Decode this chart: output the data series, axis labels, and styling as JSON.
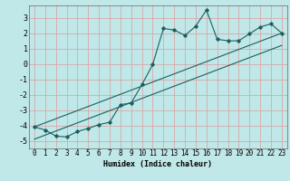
{
  "title": "",
  "xlabel": "Humidex (Indice chaleur)",
  "background_color": "#c0e8e8",
  "grid_color": "#d8a8a8",
  "line_color": "#1a6060",
  "xlim": [
    -0.5,
    23.5
  ],
  "ylim": [
    -5.5,
    3.8
  ],
  "yticks": [
    -5,
    -4,
    -3,
    -2,
    -1,
    0,
    1,
    2,
    3
  ],
  "xticks": [
    0,
    1,
    2,
    3,
    4,
    5,
    6,
    7,
    8,
    9,
    10,
    11,
    12,
    13,
    14,
    15,
    16,
    17,
    18,
    19,
    20,
    21,
    22,
    23
  ],
  "series1_x": [
    0,
    1,
    2,
    3,
    4,
    5,
    6,
    7,
    8,
    9,
    10,
    11,
    12,
    13,
    14,
    15,
    16,
    17,
    18,
    19,
    20,
    21,
    22,
    23
  ],
  "series1_y": [
    -4.1,
    -4.3,
    -4.7,
    -4.75,
    -4.4,
    -4.2,
    -3.95,
    -3.8,
    -2.65,
    -2.55,
    -1.35,
    -0.05,
    2.3,
    2.2,
    1.85,
    2.45,
    3.5,
    1.6,
    1.5,
    1.5,
    1.95,
    2.4,
    2.6,
    2.0
  ],
  "series2_x": [
    0,
    23
  ],
  "series2_y": [
    -4.1,
    2.0
  ],
  "series3_x": [
    0,
    23
  ],
  "series3_y": [
    -4.9,
    1.2
  ],
  "xlabel_fontsize": 6.0,
  "tick_fontsize": 5.5
}
